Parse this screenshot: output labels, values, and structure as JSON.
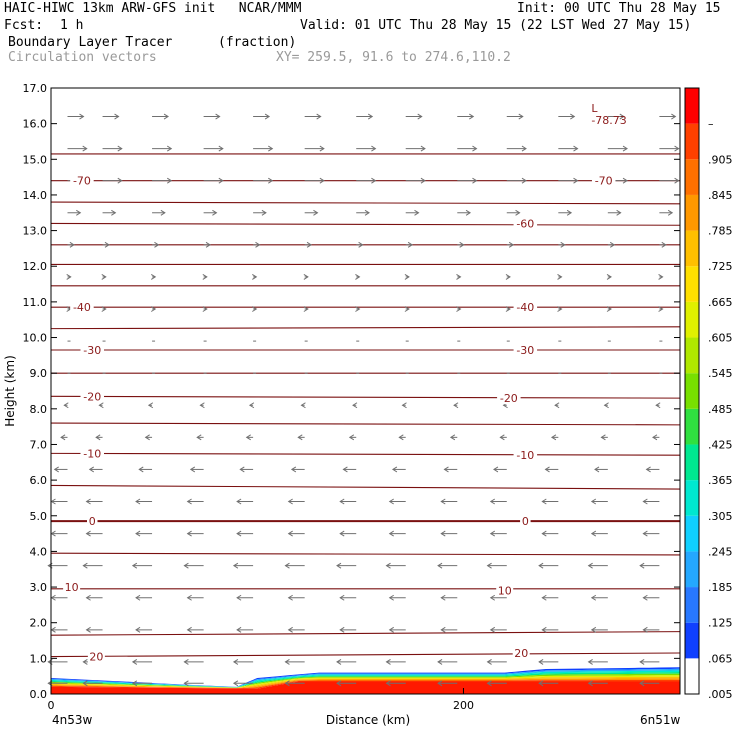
{
  "header": {
    "title_left": "HAIC-HIWC 13km ARW-GFS init   NCAR/MMM",
    "init": "Init: 00 UTC Thu 28 May 15",
    "fcst_label": "Fcst:",
    "fcst_value": "1 h",
    "valid": "Valid: 01 UTC Thu 28 May 15 (22 LST Wed 27 May 15)",
    "field1": "Boundary Layer Tracer",
    "field1_units": "(fraction)",
    "field2": "Circulation vectors",
    "xy": "XY= 259.5, 91.6 to 274.6,110.2"
  },
  "chart_data": {
    "type": "heatmap",
    "xlabel": "Distance (km)",
    "ylabel": "Height (km)",
    "x_start_label": "4n53w",
    "x_end_label": "6n51w",
    "xlim": [
      0,
      305
    ],
    "ylim": [
      0,
      17
    ],
    "x_ticks": [
      "0",
      "200"
    ],
    "y_ticks": [
      "0.0",
      "1.0",
      "2.0",
      "3.0",
      "4.0",
      "5.0",
      "6.0",
      "7.0",
      "8.0",
      "9.0",
      "10.0",
      "11.0",
      "12.0",
      "13.0",
      "14.0",
      "15.0",
      "16.0",
      "17.0"
    ],
    "colorbar": {
      "labels": [
        ".005",
        ".065",
        ".125",
        ".185",
        ".245",
        ".305",
        ".365",
        ".425",
        ".485",
        ".545",
        ".605",
        ".665",
        ".725",
        ".785",
        ".845",
        ".905",
        "–"
      ],
      "colors": [
        "#ffffff",
        "#1040ff",
        "#2878ff",
        "#24a8ff",
        "#10d0ff",
        "#00e8d0",
        "#00e890",
        "#30e040",
        "#78e000",
        "#b0e800",
        "#e0f000",
        "#ffe000",
        "#ffc000",
        "#ff9800",
        "#ff7000",
        "#ff4000",
        "#ff0000"
      ]
    },
    "temperature_contours": {
      "units": "C",
      "levels": [
        {
          "value": 20,
          "heights": [
            1.05,
            1.15
          ]
        },
        {
          "value": 15,
          "heights": [
            1.65,
            1.75
          ]
        },
        {
          "value": 10,
          "heights": [
            2.95,
            2.95
          ]
        },
        {
          "value": 5,
          "heights": [
            3.95,
            3.9
          ]
        },
        {
          "value": 0,
          "heights": [
            4.85,
            4.85
          ]
        },
        {
          "value": -5,
          "heights": [
            5.85,
            5.75
          ]
        },
        {
          "value": -10,
          "heights": [
            6.75,
            6.7
          ]
        },
        {
          "value": -15,
          "heights": [
            7.6,
            7.55
          ]
        },
        {
          "value": -20,
          "heights": [
            8.35,
            8.3
          ]
        },
        {
          "value": -25,
          "heights": [
            9.0,
            9.0
          ]
        },
        {
          "value": -30,
          "heights": [
            9.65,
            9.65
          ]
        },
        {
          "value": -35,
          "heights": [
            10.25,
            10.3
          ]
        },
        {
          "value": -40,
          "heights": [
            10.85,
            10.85
          ]
        },
        {
          "value": -45,
          "heights": [
            11.45,
            11.45
          ]
        },
        {
          "value": -50,
          "heights": [
            12.05,
            12.05
          ]
        },
        {
          "value": -55,
          "heights": [
            12.6,
            12.6
          ]
        },
        {
          "value": -60,
          "heights": [
            13.2,
            13.15
          ]
        },
        {
          "value": -65,
          "heights": [
            13.8,
            13.75
          ]
        },
        {
          "value": -70,
          "heights": [
            14.4,
            14.4
          ]
        },
        {
          "value": -75,
          "heights": [
            15.15,
            15.15
          ]
        }
      ],
      "labels": [
        {
          "text": "20",
          "x": 22,
          "y": 1.05
        },
        {
          "text": "20",
          "x": 228,
          "y": 1.15
        },
        {
          "text": "10",
          "x": 10,
          "y": 3.0
        },
        {
          "text": "10",
          "x": 220,
          "y": 2.9
        },
        {
          "text": "0",
          "x": 20,
          "y": 4.85
        },
        {
          "text": "0",
          "x": 230,
          "y": 4.85
        },
        {
          "text": "-10",
          "x": 20,
          "y": 6.75
        },
        {
          "text": "-10",
          "x": 230,
          "y": 6.7
        },
        {
          "text": "-20",
          "x": 20,
          "y": 8.35
        },
        {
          "text": "-20",
          "x": 222,
          "y": 8.3
        },
        {
          "text": "-30",
          "x": 20,
          "y": 9.65
        },
        {
          "text": "-30",
          "x": 230,
          "y": 9.65
        },
        {
          "text": "-40",
          "x": 15,
          "y": 10.85
        },
        {
          "text": "-40",
          "x": 230,
          "y": 10.85
        },
        {
          "text": "-60",
          "x": 230,
          "y": 13.2
        },
        {
          "text": "-70",
          "x": 15,
          "y": 14.4
        },
        {
          "text": "-70",
          "x": 268,
          "y": 14.4
        }
      ],
      "min_marker": {
        "symbol": "L",
        "value": "-78.73",
        "x": 262,
        "y": 16.1
      }
    },
    "tracer_layer": {
      "note_top_height_km": [
        [
          0,
          0.45
        ],
        [
          70,
          0.25
        ],
        [
          90,
          0.2
        ],
        [
          100,
          0.45
        ],
        [
          130,
          0.6
        ],
        [
          220,
          0.6
        ],
        [
          240,
          0.7
        ],
        [
          305,
          0.75
        ]
      ],
      "deep_core_top_km": [
        [
          0,
          0.2
        ],
        [
          100,
          0.15
        ],
        [
          120,
          0.35
        ],
        [
          305,
          0.35
        ]
      ]
    },
    "vectors": {
      "columns_km": [
        8,
        25,
        49,
        74,
        98,
        123,
        148,
        172,
        197,
        221,
        246,
        270,
        295
      ],
      "rows_km": [
        0.3,
        0.9,
        1.8,
        2.7,
        3.6,
        4.5,
        5.4,
        6.3,
        7.2,
        8.1,
        9.0,
        9.9,
        10.8,
        11.7,
        12.6,
        13.5,
        14.4,
        15.3,
        16.2
      ],
      "u_by_row": [
        -6,
        -6,
        -5,
        -5,
        -6,
        -5,
        -5,
        -4,
        -2,
        -1,
        0,
        0,
        1,
        1,
        2,
        4,
        6,
        6,
        5
      ]
    }
  }
}
